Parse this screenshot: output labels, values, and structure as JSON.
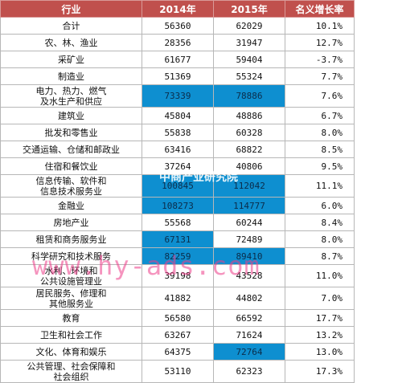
{
  "table": {
    "headers": [
      "行业",
      "2014年",
      "2015年",
      "名义增长率"
    ],
    "highlight_color": "#0e8fd0",
    "header_color": "#c0504d",
    "rows": [
      {
        "industry": [
          "合计"
        ],
        "y2014": "56360",
        "y2015": "62029",
        "growth": "10.1%"
      },
      {
        "industry": [
          "农、林、渔业"
        ],
        "y2014": "28356",
        "y2015": "31947",
        "growth": "12.7%"
      },
      {
        "industry": [
          "采矿业"
        ],
        "y2014": "61677",
        "y2015": "59404",
        "growth": "-3.7%"
      },
      {
        "industry": [
          "制造业"
        ],
        "y2014": "51369",
        "y2015": "55324",
        "growth": "7.7%"
      },
      {
        "industry": [
          "电力、热力、燃气",
          "及水生产和供应"
        ],
        "y2014": "73339",
        "y2015": "78886",
        "growth": "7.6%"
      },
      {
        "industry": [
          "建筑业"
        ],
        "y2014": "45804",
        "y2015": "48886",
        "growth": "6.7%"
      },
      {
        "industry": [
          "批发和零售业"
        ],
        "y2014": "55838",
        "y2015": "60328",
        "growth": "8.0%"
      },
      {
        "industry": [
          "交通运输、仓储和邮政业"
        ],
        "y2014": "63416",
        "y2015": "68822",
        "growth": "8.5%"
      },
      {
        "industry": [
          "住宿和餐饮业"
        ],
        "y2014": "37264",
        "y2015": "40806",
        "growth": "9.5%"
      },
      {
        "industry": [
          "信息传输、软件和",
          "信息技术服务业"
        ],
        "y2014": "100845",
        "y2015": "112042",
        "growth": "11.1%"
      },
      {
        "industry": [
          "金融业"
        ],
        "y2014": "108273",
        "y2015": "114777",
        "growth": "6.0%"
      },
      {
        "industry": [
          "房地产业"
        ],
        "y2014": "55568",
        "y2015": "60244",
        "growth": "8.4%"
      },
      {
        "industry": [
          "租赁和商务服务业"
        ],
        "y2014": "67131",
        "y2015": "72489",
        "growth": "8.0%"
      },
      {
        "industry": [
          "科学研究和技术服务"
        ],
        "y2014": "82259",
        "y2015": "89410",
        "growth": "8.7%"
      },
      {
        "industry": [
          "水利、环境和",
          "公共设施管理业"
        ],
        "y2014": "39198",
        "y2015": "43528",
        "growth": "11.0%"
      },
      {
        "industry": [
          "居民服务、修理和",
          "其他服务业"
        ],
        "y2014": "41882",
        "y2015": "44802",
        "growth": "7.0%"
      },
      {
        "industry": [
          "教育"
        ],
        "y2014": "56580",
        "y2015": "66592",
        "growth": "17.7%"
      },
      {
        "industry": [
          "卫生和社会工作"
        ],
        "y2014": "63267",
        "y2015": "71624",
        "growth": "13.2%"
      },
      {
        "industry": [
          "文化、体育和娱乐"
        ],
        "y2014": "64375",
        "y2015": "72764",
        "growth": "13.0%"
      },
      {
        "industry": [
          "公共管理、社会保障和",
          "社会组织"
        ],
        "y2014": "53110",
        "y2015": "62323",
        "growth": "17.3%"
      }
    ]
  },
  "watermark": {
    "text": "www.hy-ads.com",
    "logo_text": "中商产业研究院"
  }
}
